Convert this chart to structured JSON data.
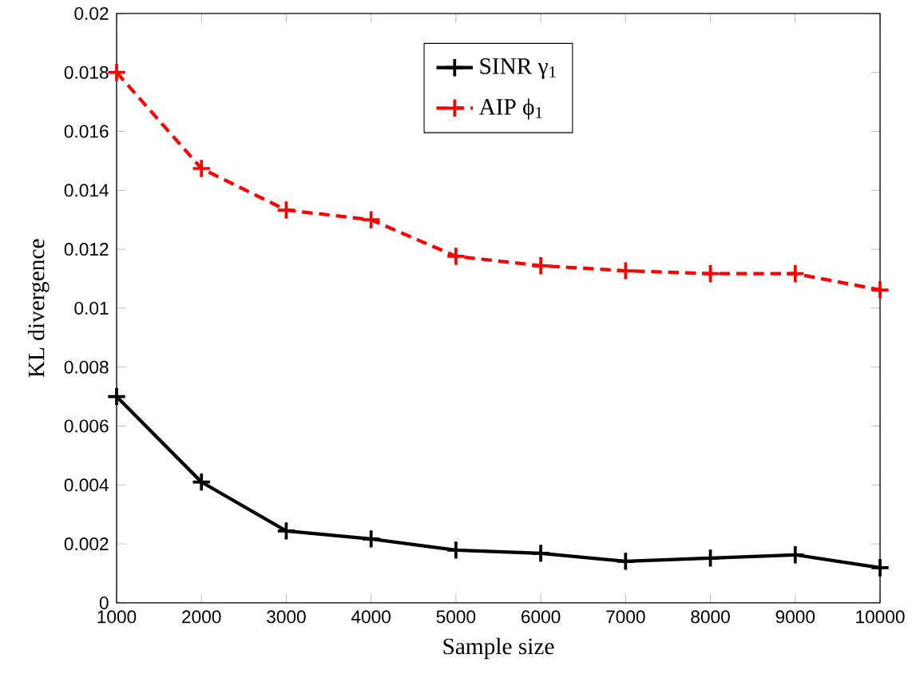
{
  "chart_data": {
    "type": "line",
    "xlabel": "Sample size",
    "ylabel": "KL divergence",
    "x": [
      1000,
      2000,
      3000,
      4000,
      5000,
      6000,
      7000,
      8000,
      9000,
      10000
    ],
    "series": [
      {
        "name": "SINR γ$_{1}$",
        "color": "#000000",
        "line_style": "solid",
        "values": [
          0.007,
          0.0041,
          0.00244,
          0.00217,
          0.00179,
          0.00168,
          0.00141,
          0.00152,
          0.00163,
          0.00119
        ]
      },
      {
        "name": "AIP ϕ$_{1}$",
        "color": "#ff0000",
        "line_style": "dashed",
        "values": [
          0.018,
          0.01474,
          0.01333,
          0.013,
          0.01176,
          0.01144,
          0.01127,
          0.01117,
          0.01117,
          0.01062
        ]
      }
    ],
    "xlim": [
      1000,
      10000
    ],
    "ylim": [
      0,
      0.02
    ],
    "xticks": [
      1000,
      2000,
      3000,
      4000,
      5000,
      6000,
      7000,
      8000,
      9000,
      10000
    ],
    "yticks": [
      0,
      0.002,
      0.004,
      0.006,
      0.008,
      0.01,
      0.012,
      0.014,
      0.016,
      0.018,
      0.02
    ],
    "marker": "cross",
    "legend": "top",
    "grid": false
  }
}
